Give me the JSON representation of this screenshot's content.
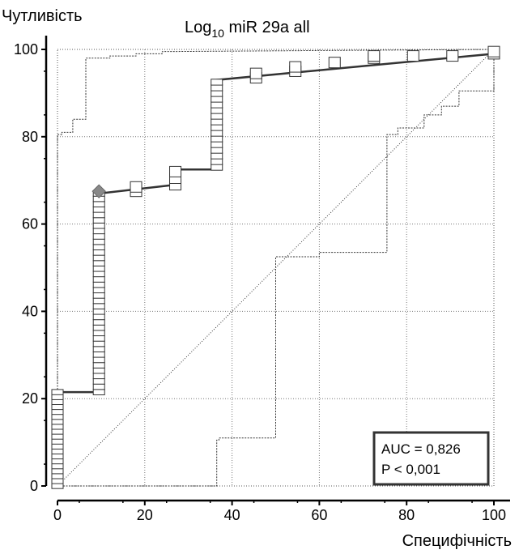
{
  "chart_data": {
    "type": "line",
    "title_prefix": "Log",
    "title_sub": "10",
    "title_suffix": " miR 29a all",
    "ylabel": "Чутливість",
    "xlabel": "Специфічність",
    "xlim": [
      0,
      100
    ],
    "ylim": [
      0,
      100
    ],
    "xticks": [
      "0",
      "20",
      "40",
      "60",
      "80",
      "100"
    ],
    "yticks": [
      "0",
      "20",
      "40",
      "60",
      "80",
      "100"
    ],
    "grid": true,
    "annotation": {
      "auc": "AUC = 0,826",
      "p": "P < 0,001",
      "placement": "bottom-right"
    },
    "roc_curve": {
      "x": [
        0,
        0,
        9.5,
        9.5,
        27,
        27,
        36.5,
        36.5,
        100
      ],
      "y": [
        0,
        21.5,
        21.5,
        67,
        69,
        72.5,
        72.5,
        93,
        99
      ]
    },
    "upper_ci": {
      "x": [
        0,
        0,
        1,
        1,
        3.5,
        3.5,
        6.5,
        6.5,
        12,
        12,
        18,
        18,
        24,
        24,
        100
      ],
      "y": [
        0,
        80.5,
        80.5,
        81,
        81,
        84,
        84,
        98,
        98,
        98.5,
        98.5,
        99,
        99,
        99.5,
        100
      ]
    },
    "lower_ci": {
      "x": [
        0,
        36.5,
        36.5,
        37,
        37,
        39,
        39,
        41,
        41,
        50,
        50,
        53,
        53,
        55,
        55,
        60,
        60,
        66,
        66,
        75.5,
        75.5,
        78,
        78,
        84,
        84,
        88,
        88,
        92,
        92,
        100,
        100
      ],
      "y": [
        0,
        0,
        10.5,
        10.5,
        11,
        11,
        11,
        11,
        11,
        11,
        52.5,
        52.5,
        52.5,
        52.5,
        52.5,
        52.5,
        53.5,
        53.5,
        53.5,
        53.5,
        80.5,
        80.5,
        82,
        82,
        85,
        85,
        87,
        87,
        90.5,
        90.5,
        100
      ]
    },
    "optimal_point": {
      "x": 9.5,
      "y": 67.5
    },
    "markers": [
      {
        "x": 0,
        "y_from": 0,
        "y_to": 21.5,
        "count": 20
      },
      {
        "x": 9.5,
        "y_from": 21.5,
        "y_to": 67,
        "count": 38
      },
      {
        "x": 18,
        "y_from": 67.5,
        "y_to": 68.5,
        "count": 2
      },
      {
        "x": 27,
        "y_from": 69,
        "y_to": 72,
        "count": 3
      },
      {
        "x": 36.5,
        "y_from": 73,
        "y_to": 92.5,
        "count": 16
      },
      {
        "x": 45.5,
        "y_from": 93.5,
        "y_to": 94.5,
        "count": 2
      },
      {
        "x": 54.5,
        "y_from": 95,
        "y_to": 96,
        "count": 2
      },
      {
        "x": 63.5,
        "y_from": 97,
        "y_to": 97,
        "count": 1
      },
      {
        "x": 72.5,
        "y_from": 98,
        "y_to": 98.5,
        "count": 2
      },
      {
        "x": 81.5,
        "y_from": 98.5,
        "y_to": 98.5,
        "count": 1
      },
      {
        "x": 90.5,
        "y_from": 98.5,
        "y_to": 98.5,
        "count": 1
      },
      {
        "x": 100,
        "y_from": 99,
        "y_to": 99.5,
        "count": 2
      }
    ]
  }
}
